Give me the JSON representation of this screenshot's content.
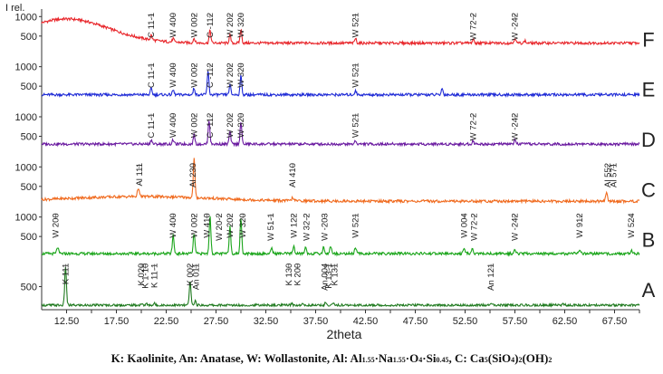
{
  "chart_data": {
    "type": "line",
    "ylabel": "I rel.",
    "xlabel": "2theta",
    "xlim": [
      10,
      70
    ],
    "xticks": [
      12.5,
      15,
      17.5,
      20,
      22.5,
      25,
      27.5,
      30,
      32.5,
      35,
      37.5,
      40,
      42.5,
      45,
      47.5,
      50,
      52.5,
      55,
      57.5,
      60,
      62.5,
      65,
      67.5,
      70
    ],
    "x_tick_labels": [
      "12.50",
      "15.00",
      "17.50",
      "20.00",
      "22.50",
      "25.00",
      "27.50",
      "30.00",
      "32.50",
      "35.00",
      "37.50",
      "40.00",
      "42.50",
      "45.00",
      "47.50",
      "50.00",
      "52.50",
      "55.00",
      "57.50",
      "60.00",
      "62.50",
      "65.00",
      "67.50",
      "70.00"
    ],
    "grid": false,
    "series": [
      {
        "name": "F",
        "color": "#e8262b",
        "y_ticks": [
          1000,
          500
        ],
        "ylim": [
          0,
          1100
        ],
        "baseline": 320,
        "hump": {
          "center": 12.5,
          "height": 620,
          "width": 6
        },
        "peaks": [
          [
            21.0,
            120
          ],
          [
            23.2,
            90
          ],
          [
            25.3,
            120
          ],
          [
            26.9,
            330
          ],
          [
            28.9,
            200
          ],
          [
            30.0,
            350
          ],
          [
            41.5,
            120
          ],
          [
            53.3,
            90
          ],
          [
            57.5,
            140
          ],
          [
            58.5,
            60
          ]
        ],
        "labels": [
          {
            "x": 21.0,
            "text": "C 11-1"
          },
          {
            "x": 23.2,
            "text": "W 400"
          },
          {
            "x": 25.3,
            "text": "W 002"
          },
          {
            "x": 26.9,
            "text": "C -112"
          },
          {
            "x": 28.9,
            "text": "W 202"
          },
          {
            "x": 30.0,
            "text": "W 320"
          },
          {
            "x": 41.5,
            "text": "W 521"
          },
          {
            "x": 53.3,
            "text": "W 72-2"
          },
          {
            "x": 57.5,
            "text": "W -242"
          }
        ]
      },
      {
        "name": "E",
        "color": "#1f2bd6",
        "y_ticks": [
          1000,
          500
        ],
        "ylim": [
          0,
          1100
        ],
        "baseline": 280,
        "peaks": [
          [
            21.0,
            160
          ],
          [
            23.2,
            120
          ],
          [
            25.3,
            170
          ],
          [
            26.7,
            600
          ],
          [
            28.9,
            250
          ],
          [
            30.0,
            480
          ],
          [
            41.5,
            110
          ],
          [
            50.2,
            160
          ]
        ],
        "labels": [
          {
            "x": 21.0,
            "text": "C 11-1"
          },
          {
            "x": 23.2,
            "text": "W 400"
          },
          {
            "x": 25.3,
            "text": "W 002"
          },
          {
            "x": 26.9,
            "text": "C -112"
          },
          {
            "x": 28.9,
            "text": "W 202"
          },
          {
            "x": 30.0,
            "text": "W 320"
          },
          {
            "x": 41.5,
            "text": "W 521"
          }
        ]
      },
      {
        "name": "D",
        "color": "#6a1aa0",
        "y_ticks": [
          1000,
          500
        ],
        "ylim": [
          0,
          1100
        ],
        "baseline": 300,
        "peaks": [
          [
            21.0,
            110
          ],
          [
            23.2,
            110
          ],
          [
            25.3,
            240
          ],
          [
            26.8,
            620
          ],
          [
            28.9,
            310
          ],
          [
            30.0,
            560
          ],
          [
            41.5,
            90
          ],
          [
            53.3,
            90
          ],
          [
            57.5,
            110
          ]
        ],
        "labels": [
          {
            "x": 21.0,
            "text": "C 11-1"
          },
          {
            "x": 23.2,
            "text": "W 400"
          },
          {
            "x": 25.3,
            "text": "W 002"
          },
          {
            "x": 26.9,
            "text": "C -112"
          },
          {
            "x": 28.9,
            "text": "W 202"
          },
          {
            "x": 30.0,
            "text": "W 320"
          },
          {
            "x": 41.5,
            "text": "W 521"
          },
          {
            "x": 53.3,
            "text": "W 72-2"
          },
          {
            "x": 57.5,
            "text": "W -242"
          }
        ]
      },
      {
        "name": "C",
        "color": "#f06a1e",
        "y_ticks": [
          1000,
          500
        ],
        "ylim": [
          0,
          1100
        ],
        "baseline": 120,
        "hump": {
          "center": 20,
          "height": 120,
          "width": 10
        },
        "peaks": [
          [
            19.7,
            230
          ],
          [
            25.3,
            1000
          ],
          [
            35.2,
            90
          ],
          [
            66.7,
            220
          ]
        ],
        "labels": [
          {
            "x": 19.8,
            "text": "Al 111"
          },
          {
            "x": 25.2,
            "text": "Al 230"
          },
          {
            "x": 35.2,
            "text": "Al 410"
          },
          {
            "x": 66.8,
            "text": "Al 552"
          },
          {
            "x": 67.4,
            "text": "Al 571"
          }
        ]
      },
      {
        "name": "B",
        "color": "#1aa51a",
        "y_ticks": [
          1000,
          500
        ],
        "ylim": [
          0,
          1100
        ],
        "baseline": 60,
        "peaks": [
          [
            11.6,
            170
          ],
          [
            23.2,
            470
          ],
          [
            25.3,
            520
          ],
          [
            26.9,
            950
          ],
          [
            28.9,
            700
          ],
          [
            30.0,
            900
          ],
          [
            33.1,
            150
          ],
          [
            35.3,
            200
          ],
          [
            36.5,
            170
          ],
          [
            38.3,
            170
          ],
          [
            39.0,
            200
          ],
          [
            41.5,
            170
          ],
          [
            52.4,
            100
          ],
          [
            53.2,
            130
          ],
          [
            57.5,
            80
          ],
          [
            64.0,
            80
          ],
          [
            69.2,
            70
          ]
        ],
        "labels": [
          {
            "x": 11.4,
            "text": "W 200"
          },
          {
            "x": 23.2,
            "text": "W 400"
          },
          {
            "x": 25.3,
            "text": "W 002"
          },
          {
            "x": 26.6,
            "text": "W 410"
          },
          {
            "x": 27.8,
            "text": "W 20-2"
          },
          {
            "x": 28.9,
            "text": "W 202"
          },
          {
            "x": 30.2,
            "text": "W 320"
          },
          {
            "x": 33.0,
            "text": "W 51-1"
          },
          {
            "x": 35.3,
            "text": "W 122"
          },
          {
            "x": 36.6,
            "text": "W 32-2"
          },
          {
            "x": 38.4,
            "text": "W -203"
          },
          {
            "x": 41.5,
            "text": "W 521"
          },
          {
            "x": 52.4,
            "text": "W 004"
          },
          {
            "x": 53.4,
            "text": "W 72-2"
          },
          {
            "x": 57.5,
            "text": "W -242"
          },
          {
            "x": 64.0,
            "text": "W 912"
          },
          {
            "x": 69.2,
            "text": "W 524"
          }
        ]
      },
      {
        "name": "A",
        "color": "#1f7a1f",
        "y_ticks": [
          500
        ],
        "ylim": [
          0,
          1100
        ],
        "baseline": 20,
        "peaks": [
          [
            12.4,
            1000
          ],
          [
            20.0,
            40
          ],
          [
            20.5,
            40
          ],
          [
            21.3,
            50
          ],
          [
            24.9,
            600
          ],
          [
            25.4,
            120
          ],
          [
            35.1,
            40
          ],
          [
            36.2,
            30
          ],
          [
            38.5,
            60
          ],
          [
            39.3,
            50
          ],
          [
            55.1,
            40
          ],
          [
            62.4,
            40
          ]
        ],
        "labels": [
          {
            "x": 12.4,
            "text": "K 111"
          },
          {
            "x": 20.0,
            "text": "K 020"
          },
          {
            "x": 20.4,
            "text": "K 1-10"
          },
          {
            "x": 21.3,
            "text": "K 11-1"
          },
          {
            "x": 24.9,
            "text": "K 002"
          },
          {
            "x": 25.5,
            "text": "An 011"
          },
          {
            "x": 34.8,
            "text": "K 130"
          },
          {
            "x": 35.7,
            "text": "K 200"
          },
          {
            "x": 38.4,
            "text": "An 004"
          },
          {
            "x": 38.8,
            "text": "K 13-1"
          },
          {
            "x": 39.4,
            "text": "K 131"
          },
          {
            "x": 55.1,
            "text": "An 121"
          }
        ]
      }
    ]
  },
  "caption": {
    "parts": [
      "K: Kaolinite, An: Anatase, W: Wollastonite, Al: Al",
      "1.55",
      "·Na",
      "1.55",
      "·O",
      "4",
      "·Si",
      "0.45",
      ", C: Ca",
      "5",
      "(SiO",
      "4",
      ")",
      "2",
      "(OH)",
      "2"
    ]
  }
}
